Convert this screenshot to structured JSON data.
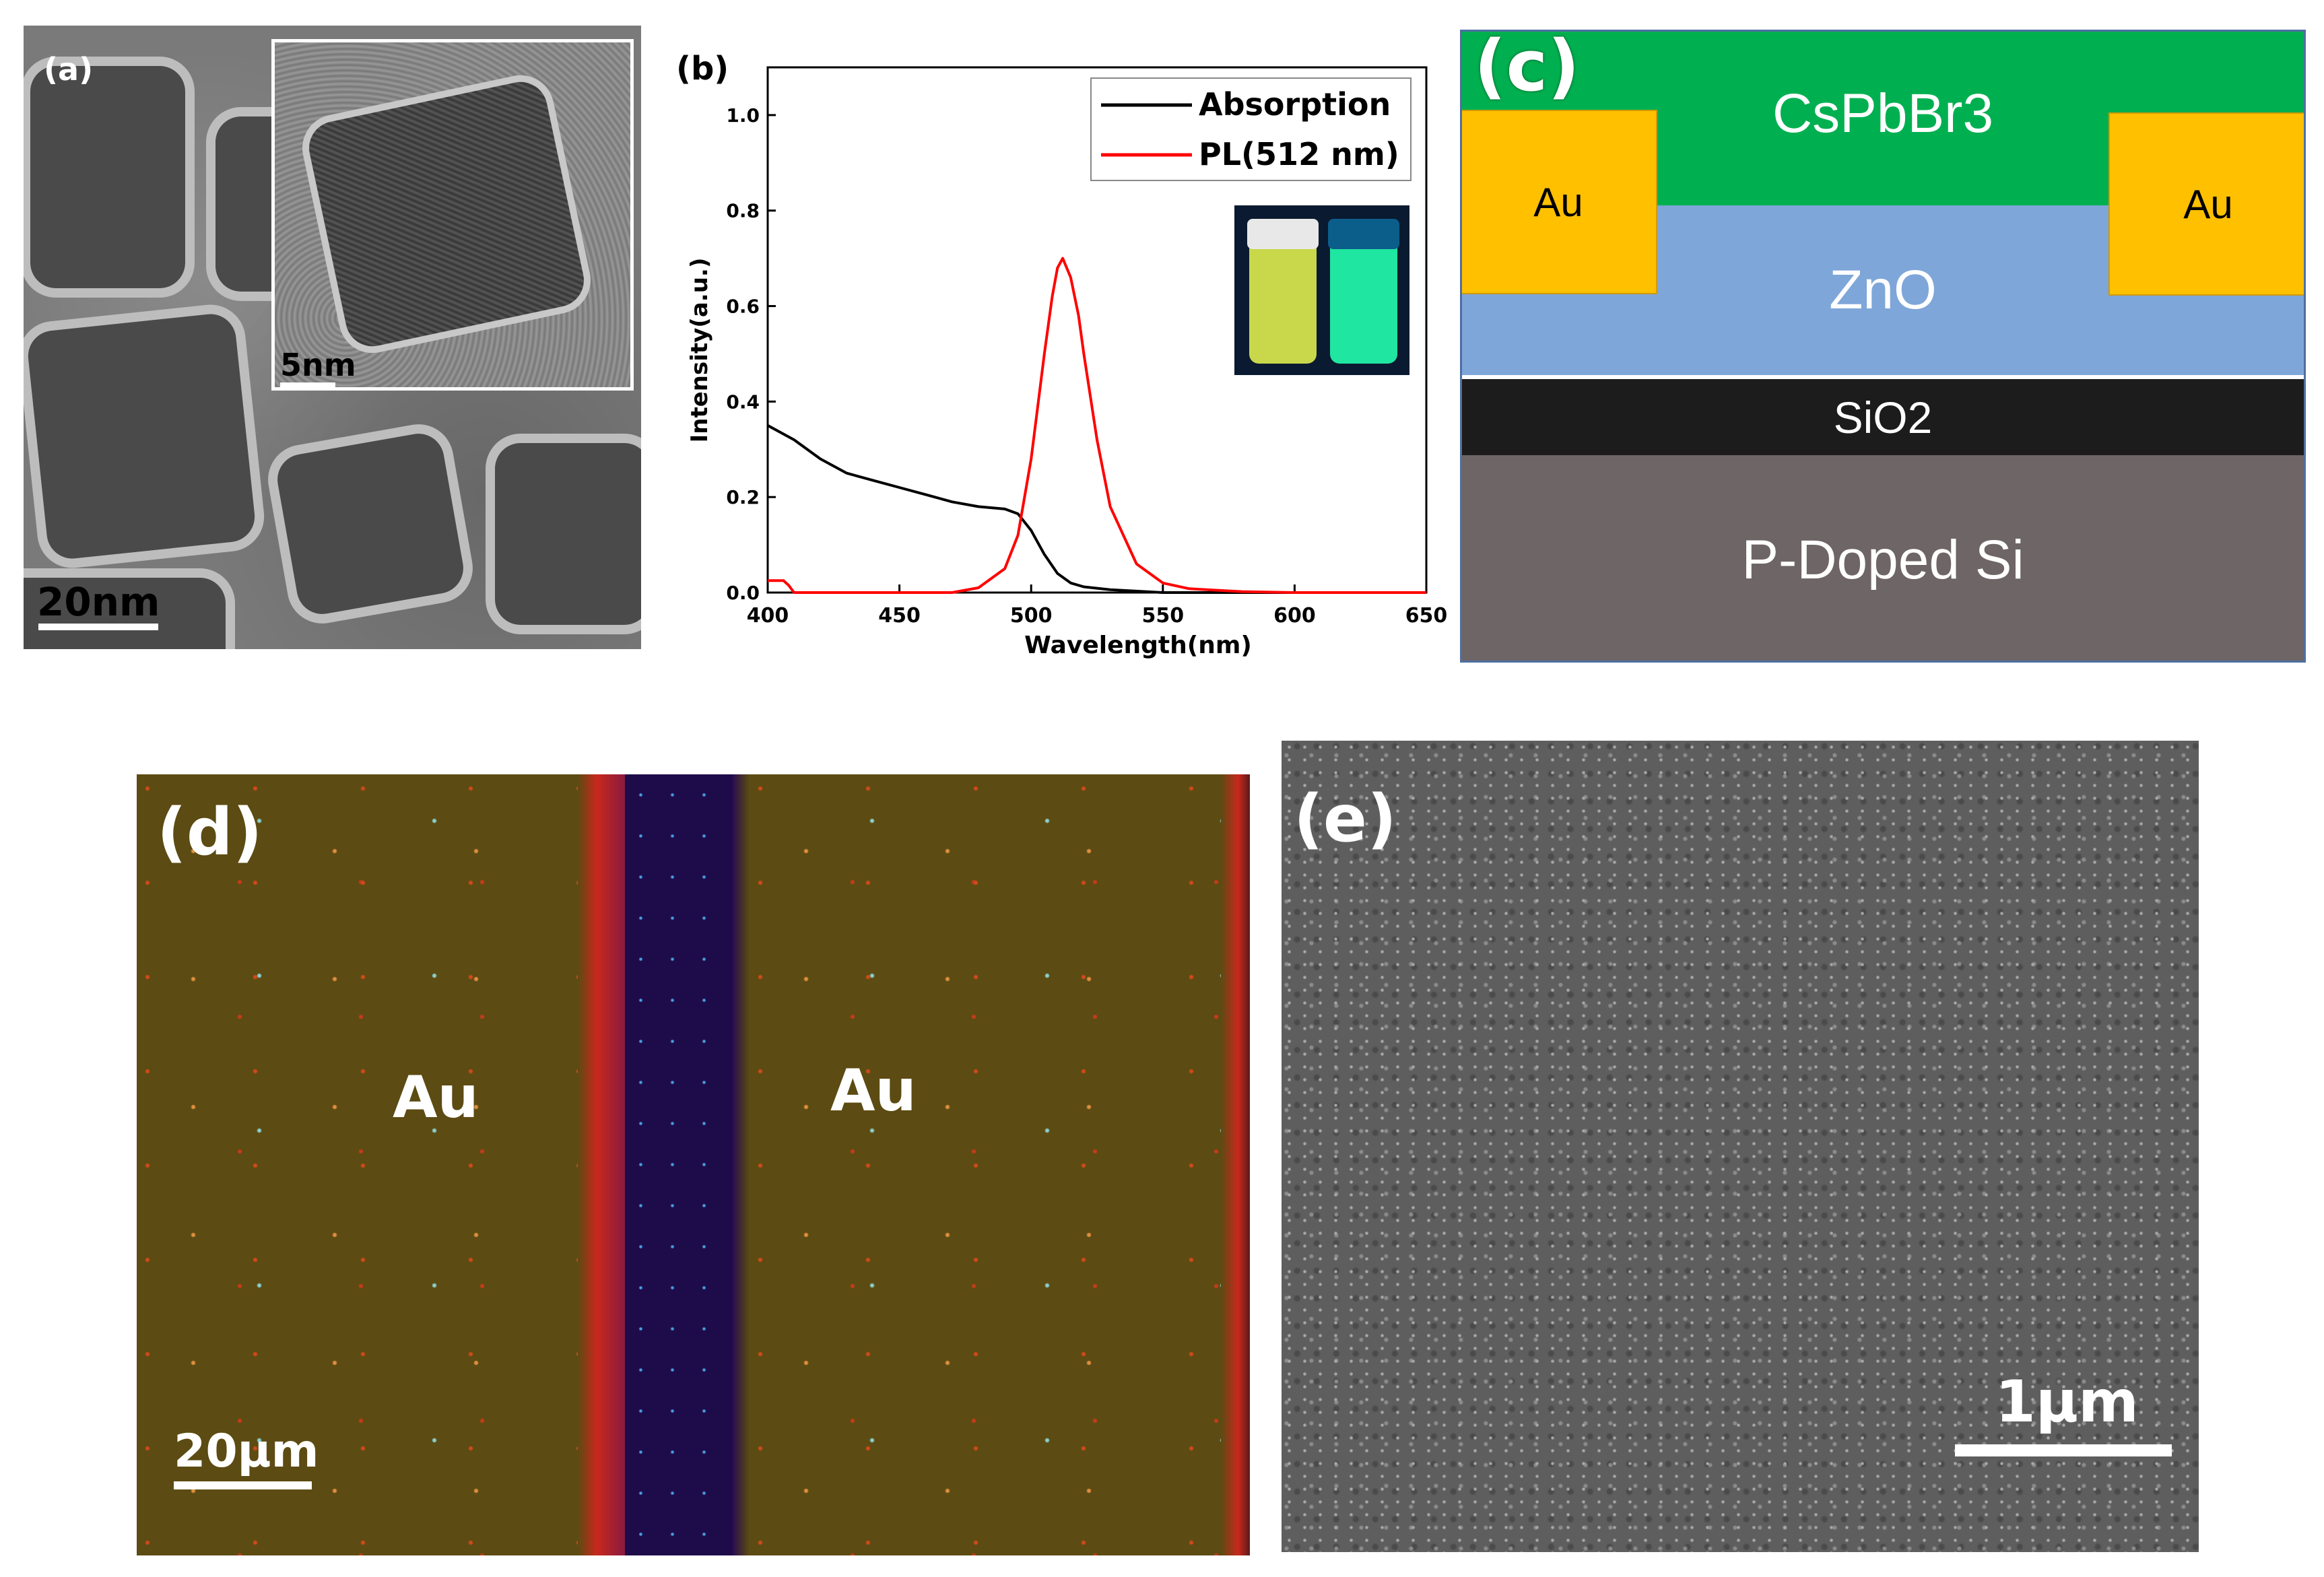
{
  "panel_a": {
    "label": "(a)",
    "scale_main": "20nm",
    "scale_inset": "5nm"
  },
  "panel_b": {
    "label": "(b)"
  },
  "chart_data": {
    "type": "line",
    "xlabel": "Wavelength(nm)",
    "ylabel": "Intensity(a.u.)",
    "xlim": [
      400,
      650
    ],
    "ylim": [
      0,
      1.1
    ],
    "xticks": [
      400,
      450,
      500,
      550,
      600,
      650
    ],
    "yticks": [
      0.0,
      0.2,
      0.4,
      0.6,
      0.8,
      1.0
    ],
    "tick_labels_y": [
      "0.0",
      "0.2",
      "0.4",
      "0.6",
      "0.8",
      "1.0"
    ],
    "legend_position": "top-right",
    "series": [
      {
        "name": "Absorption",
        "color": "#000000",
        "x": [
          400,
          410,
          420,
          430,
          440,
          450,
          460,
          470,
          480,
          490,
          495,
          500,
          505,
          510,
          515,
          520,
          530,
          540,
          550,
          560,
          580,
          600,
          620,
          650
        ],
        "y": [
          0.35,
          0.32,
          0.28,
          0.25,
          0.235,
          0.22,
          0.205,
          0.19,
          0.18,
          0.175,
          0.165,
          0.13,
          0.08,
          0.04,
          0.02,
          0.012,
          0.006,
          0.003,
          0.0,
          0.0,
          0.0,
          0.0,
          0.0,
          0.0
        ]
      },
      {
        "name": "PL(512 nm)",
        "color": "#ff0000",
        "x": [
          400,
          403,
          406,
          408,
          410,
          470,
          480,
          490,
          495,
          500,
          505,
          508,
          510,
          512,
          515,
          518,
          520,
          525,
          530,
          540,
          550,
          560,
          580,
          600,
          650
        ],
        "y": [
          0.025,
          0.025,
          0.025,
          0.015,
          0.0,
          0.0,
          0.01,
          0.05,
          0.12,
          0.28,
          0.5,
          0.62,
          0.68,
          0.7,
          0.66,
          0.58,
          0.5,
          0.32,
          0.18,
          0.06,
          0.02,
          0.008,
          0.002,
          0.0,
          0.0
        ]
      }
    ]
  },
  "panel_c": {
    "label": "(c)",
    "layers": {
      "top": "CsPbBr3",
      "zno": "ZnO",
      "sio2": "SiO2",
      "substrate": "P-Doped Si",
      "electrode_left": "Au",
      "electrode_right": "Au"
    },
    "colors": {
      "cspbbr3": "#00b050",
      "zno": "#7ea6d9",
      "sio2": "#1c1c1c",
      "substrate": "#6e6566",
      "au": "#ffc000"
    }
  },
  "panel_d": {
    "label": "(d)",
    "au_left": "Au",
    "au_right": "Au",
    "scale": "20µm"
  },
  "panel_e": {
    "label": "(e)",
    "scale": "1µm"
  }
}
